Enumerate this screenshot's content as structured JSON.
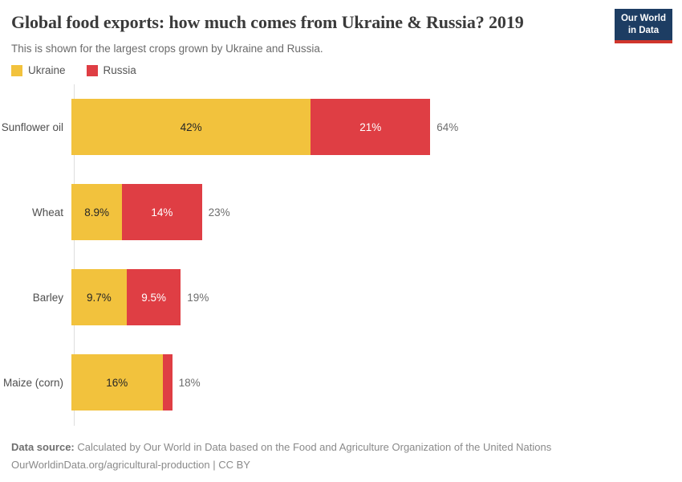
{
  "header": {
    "title": "Global food exports: how much comes from Ukraine & Russia? 2019",
    "subtitle": "This is shown for the largest crops grown by Ukraine and Russia.",
    "logo": {
      "line1": "Our World",
      "line2": "in Data"
    }
  },
  "colors": {
    "ukraine": "#F2C23D",
    "russia": "#DF3E44",
    "logo_bg": "#1D3D63",
    "logo_stripe": "#D0362C",
    "axis": "#DEDEDE",
    "inbar_dark_text": "#262626",
    "inbar_light_text": "#FFFFFF",
    "total_text": "#6E6E6E"
  },
  "legend": [
    {
      "label": "Ukraine",
      "color": "#F2C23D"
    },
    {
      "label": "Russia",
      "color": "#DF3E44"
    }
  ],
  "chart_data": {
    "type": "bar",
    "orientation": "horizontal",
    "stacked": true,
    "title": "Global food exports: how much comes from Ukraine & Russia? 2019",
    "categories": [
      "Sunflower oil",
      "Wheat",
      "Barley",
      "Maize (corn)"
    ],
    "series": [
      {
        "name": "Ukraine",
        "color": "#F2C23D",
        "values": [
          42,
          8.9,
          9.7,
          16
        ],
        "labels": [
          "42%",
          "8.9%",
          "9.7%",
          "16%"
        ],
        "label_color": "#262626"
      },
      {
        "name": "Russia",
        "color": "#DF3E44",
        "values": [
          21,
          14,
          9.5,
          1.7
        ],
        "labels": [
          "21%",
          "14%",
          "9.5%",
          ""
        ],
        "label_color": "#FFFFFF"
      }
    ],
    "totals": [
      "64%",
      "23%",
      "19%",
      "18%"
    ],
    "xlim": [
      0,
      100
    ],
    "grid": false,
    "legend_position": "top-left"
  },
  "footer": {
    "source_label": "Data source:",
    "source_text": " Calculated by Our World in Data based on the Food and Agriculture Organization of the United Nations",
    "link_line": "OurWorldinData.org/agricultural-production | CC BY"
  }
}
